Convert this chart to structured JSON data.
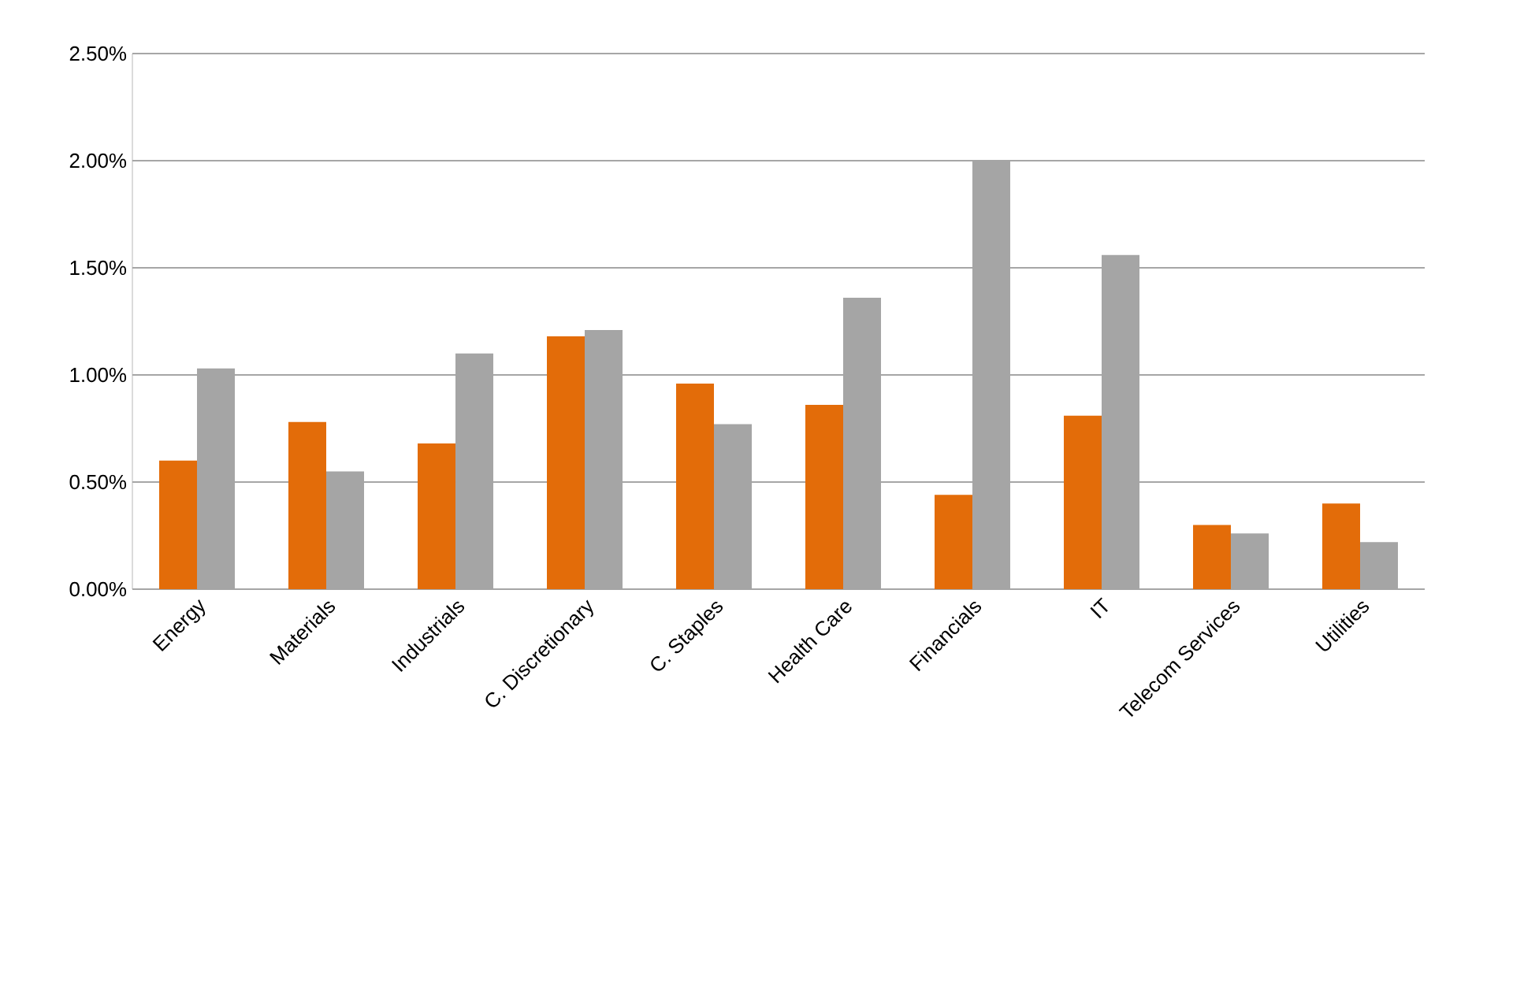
{
  "chart_data": {
    "type": "bar",
    "categories": [
      "Energy",
      "Materials",
      "Industrials",
      "C. Discretionary",
      "C. Staples",
      "Health Care",
      "Financials",
      "IT",
      "Telecom Services",
      "Utilities"
    ],
    "series": [
      {
        "color": "#e36c09",
        "values": [
          0.6,
          0.78,
          0.68,
          1.18,
          0.96,
          0.86,
          0.44,
          0.81,
          0.3,
          0.4
        ]
      },
      {
        "color": "#a5a5a5",
        "values": [
          1.03,
          0.55,
          1.1,
          1.21,
          0.77,
          1.36,
          2.0,
          1.56,
          0.26,
          0.22
        ]
      }
    ],
    "ylim": [
      0,
      2.5
    ],
    "yticks": [
      {
        "value": 0,
        "label": "0.00%"
      },
      {
        "value": 0.5,
        "label": "0.50%"
      },
      {
        "value": 1,
        "label": "1.00%"
      },
      {
        "value": 1.5,
        "label": "1.50%"
      },
      {
        "value": 2,
        "label": "2.00%"
      },
      {
        "value": 2.5,
        "label": "2.50%"
      }
    ],
    "grid": "y"
  }
}
